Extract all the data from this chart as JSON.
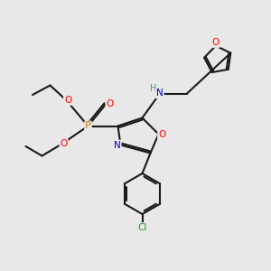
{
  "bg_color": "#e8e8e8",
  "bond_color": "#1a1a1a",
  "atom_colors": {
    "O": "#ff0000",
    "N": "#0000cd",
    "P": "#cc7700",
    "Cl": "#1a9e1a",
    "H": "#4a9090",
    "C": "#1a1a1a"
  },
  "figsize": [
    3.0,
    3.0
  ],
  "dpi": 100
}
